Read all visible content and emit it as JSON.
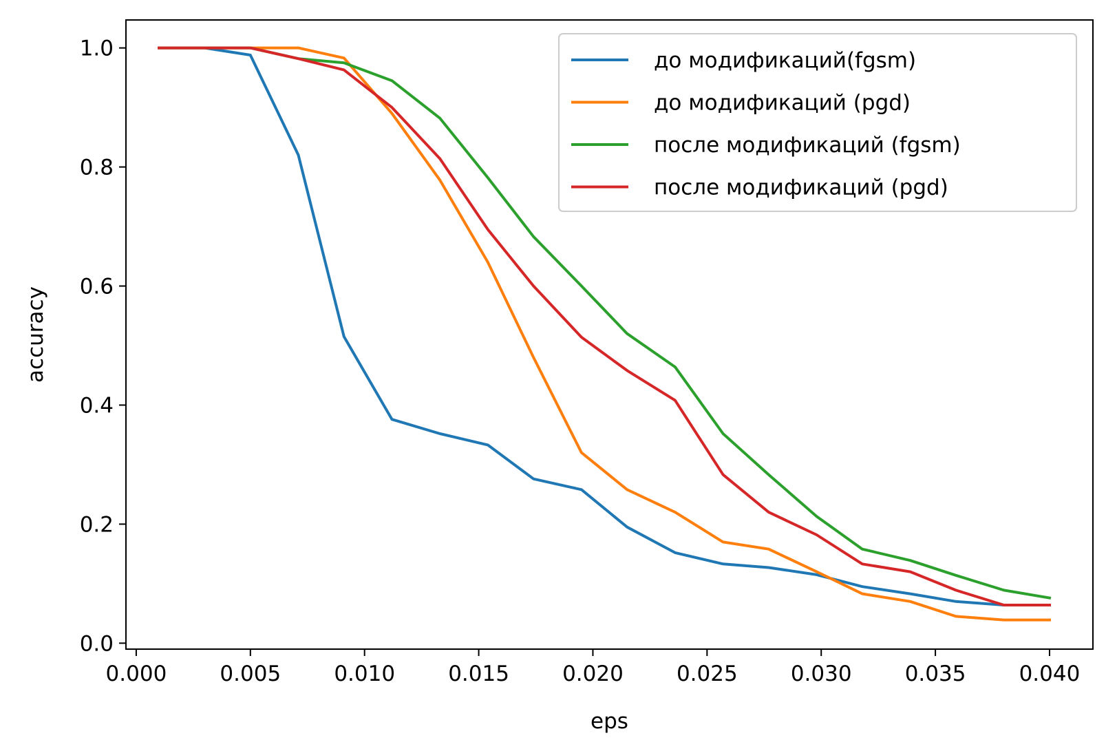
{
  "chart_data": {
    "type": "line",
    "title": "",
    "xlabel": "eps",
    "ylabel": "accuracy",
    "xlim": [
      -0.00045,
      0.0419
    ],
    "ylim": [
      -0.01,
      1.047
    ],
    "xticks": [
      0.0,
      0.005,
      0.01,
      0.015,
      0.02,
      0.025,
      0.03,
      0.035,
      0.04
    ],
    "xtick_labels": [
      "0.000",
      "0.005",
      "0.010",
      "0.015",
      "0.020",
      "0.025",
      "0.030",
      "0.035",
      "0.040"
    ],
    "yticks": [
      0.0,
      0.2,
      0.4,
      0.6,
      0.8,
      1.0
    ],
    "ytick_labels": [
      "0.0",
      "0.2",
      "0.4",
      "0.6",
      "0.8",
      "1.0"
    ],
    "grid": false,
    "legend_position": "top-right",
    "x": [
      0.001,
      0.003,
      0.005,
      0.0071,
      0.0091,
      0.0112,
      0.0133,
      0.0154,
      0.0174,
      0.0195,
      0.0215,
      0.0236,
      0.0257,
      0.0277,
      0.0298,
      0.0318,
      0.0339,
      0.0359,
      0.038,
      0.04
    ],
    "series": [
      {
        "name": "до модификаций(fgsm)",
        "color": "#1f77b4",
        "values": [
          1.0,
          1.0,
          0.988,
          0.82,
          0.515,
          0.376,
          0.352,
          0.333,
          0.276,
          0.258,
          0.195,
          0.152,
          0.133,
          0.127,
          0.115,
          0.095,
          0.083,
          0.07,
          0.064,
          0.064
        ]
      },
      {
        "name": "до модификаций (pgd)",
        "color": "#ff7f0e",
        "values": [
          1.0,
          1.0,
          1.0,
          1.0,
          0.983,
          0.89,
          0.778,
          0.64,
          0.48,
          0.32,
          0.258,
          0.22,
          0.17,
          0.158,
          0.12,
          0.083,
          0.07,
          0.045,
          0.039,
          0.039
        ]
      },
      {
        "name": "после модификаций (fgsm)",
        "color": "#2ca02c",
        "values": [
          1.0,
          1.0,
          1.0,
          0.982,
          0.975,
          0.945,
          0.882,
          0.782,
          0.683,
          0.6,
          0.52,
          0.464,
          0.352,
          0.283,
          0.213,
          0.158,
          0.139,
          0.114,
          0.089,
          0.076
        ]
      },
      {
        "name": "после модификаций (pgd)",
        "color": "#d62728",
        "values": [
          1.0,
          1.0,
          1.0,
          0.982,
          0.963,
          0.9,
          0.814,
          0.695,
          0.6,
          0.514,
          0.458,
          0.408,
          0.283,
          0.22,
          0.182,
          0.133,
          0.12,
          0.089,
          0.064,
          0.064
        ]
      }
    ]
  }
}
